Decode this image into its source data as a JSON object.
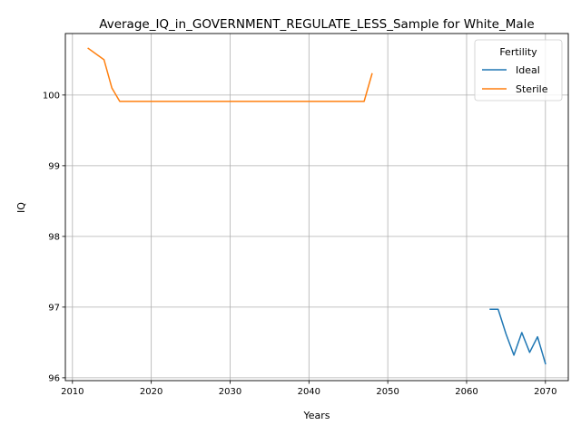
{
  "chart_data": {
    "type": "line",
    "title": "Average_IQ_in_GOVERNMENT_REGULATE_LESS_Sample for White_Male",
    "xlabel": "Years",
    "ylabel": "IQ",
    "xlim": [
      2009.1,
      2072.9
    ],
    "ylim": [
      95.96,
      100.87
    ],
    "xticks": [
      2010,
      2020,
      2030,
      2040,
      2050,
      2060,
      2070
    ],
    "yticks": [
      96,
      97,
      98,
      99,
      100
    ],
    "grid": true,
    "legend": {
      "title": "Fertility",
      "position": "top-right"
    },
    "series": [
      {
        "name": "Ideal",
        "color": "#1f77b4",
        "x": [
          2063,
          2064,
          2065,
          2066,
          2067,
          2068,
          2069,
          2070
        ],
        "y": [
          96.97,
          96.97,
          96.62,
          96.32,
          96.64,
          96.36,
          96.58,
          96.2
        ]
      },
      {
        "name": "Sterile",
        "color": "#ff7f0e",
        "x": [
          2012,
          2014,
          2015,
          2016,
          2017,
          2020,
          2025,
          2030,
          2035,
          2040,
          2045,
          2047,
          2048
        ],
        "y": [
          100.66,
          100.5,
          100.1,
          99.91,
          99.91,
          99.91,
          99.91,
          99.91,
          99.91,
          99.91,
          99.91,
          99.91,
          100.3
        ]
      }
    ]
  }
}
